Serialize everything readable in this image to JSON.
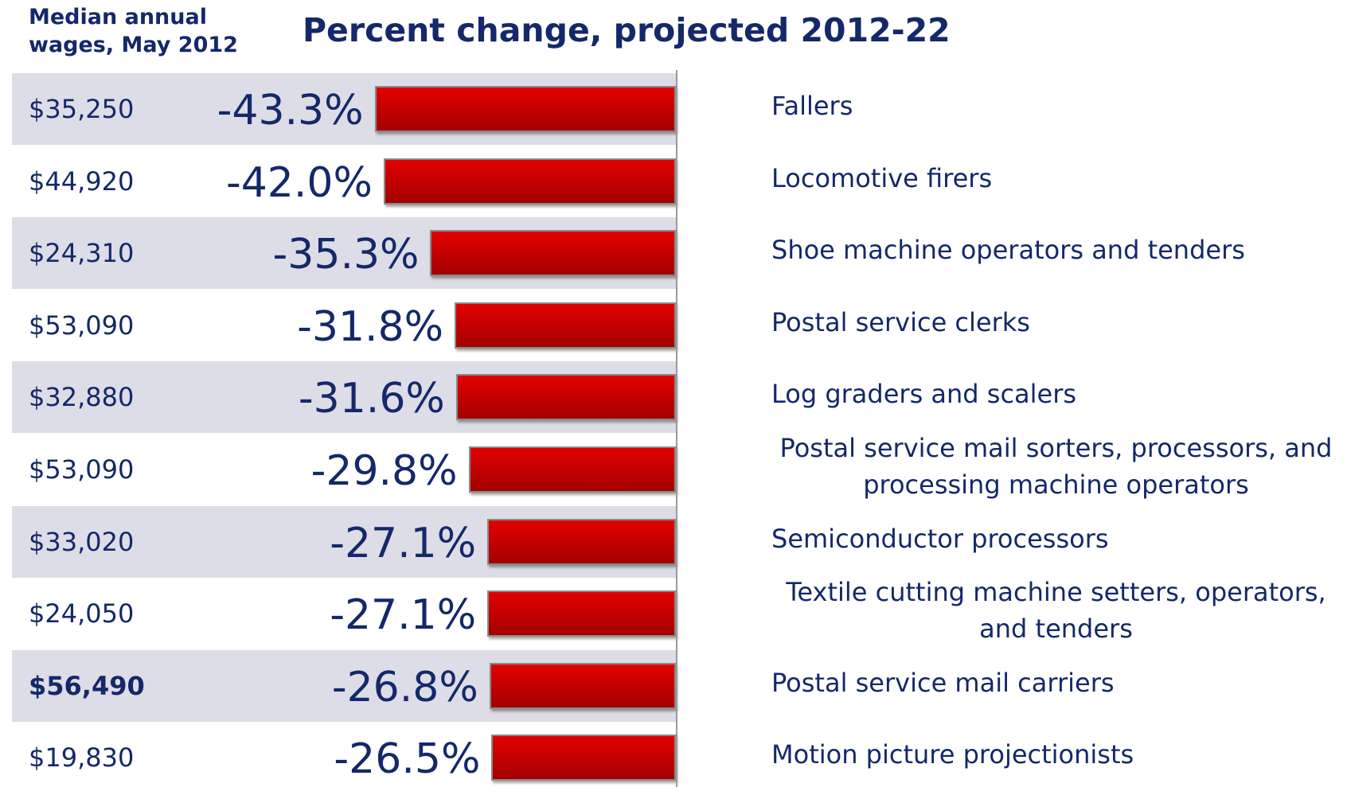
{
  "chart_data": {
    "type": "bar",
    "orientation": "horizontal",
    "title": "Percent change, projected 2012-22",
    "wage_header": "Median annual wages, May 2012",
    "categories": [
      "Fallers",
      "Locomotive firers",
      "Shoe machine operators and tenders",
      "Postal service clerks",
      "Log graders and scalers",
      "Postal service mail sorters, processors, and processing machine operators",
      "Semiconductor processors",
      "Textile cutting machine setters, operators, and tenders",
      "Postal service mail carriers",
      "Motion picture projectionists"
    ],
    "wages": [
      "$35,250",
      "$44,920",
      "$24,310",
      "$53,090",
      "$32,880",
      "$53,090",
      "$33,020",
      "$24,050",
      "$56,490",
      "$19,830"
    ],
    "values": [
      -43.3,
      -42.0,
      -35.3,
      -31.8,
      -31.6,
      -29.8,
      -27.1,
      -27.1,
      -26.8,
      -26.5
    ],
    "value_labels": [
      "-43.3%",
      "-42.0%",
      "-35.3%",
      "-31.8%",
      "-31.6%",
      "-29.8%",
      "-27.1%",
      "-27.1%",
      "-26.8%",
      "-26.5%"
    ],
    "color": "#cc0000",
    "xlim": [
      -50,
      0
    ]
  }
}
